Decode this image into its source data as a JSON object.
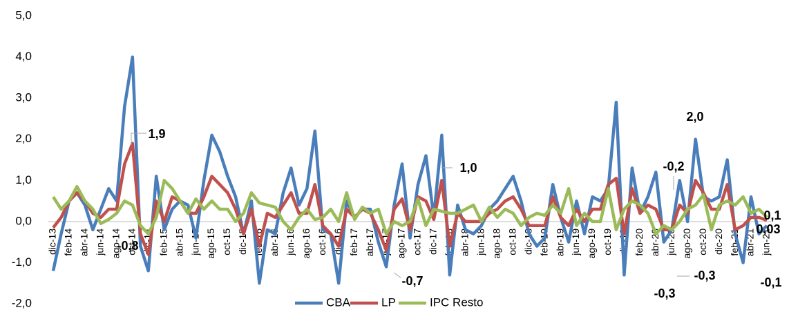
{
  "chart_data": {
    "type": "line",
    "categories": [
      "dic-13",
      null,
      "feb-14",
      null,
      "abr-14",
      null,
      "jun-14",
      null,
      "ago-14",
      null,
      "oct-14",
      null,
      "dic-14",
      null,
      "feb-15",
      null,
      "abr-15",
      null,
      "jun-15",
      null,
      "ago-15",
      null,
      "oct-15",
      null,
      "dic-15",
      null,
      "feb-16",
      null,
      "abr-16",
      null,
      "jun-16",
      null,
      "ago-16",
      null,
      "oct-16",
      null,
      "dic-16",
      null,
      "feb-17",
      null,
      "abr-17",
      null,
      "jun-17",
      null,
      "ago-17",
      null,
      "oct-17",
      null,
      "dic-17",
      null,
      "feb-18",
      null,
      "abr-18",
      null,
      "jun-18",
      null,
      "ago-18",
      null,
      "oct-18",
      null,
      "dic-18",
      null,
      "feb-19",
      null,
      "abr-19",
      null,
      "jun-19",
      null,
      "ago-19",
      null,
      "oct-19",
      null,
      "dic-19",
      null,
      "feb-20",
      null,
      "abr-20",
      null,
      "jun-20",
      null,
      "ago-20",
      null,
      "oct-20",
      null,
      "dic-20",
      null,
      "feb-21",
      null,
      "abr-21",
      null,
      "jun-21"
    ],
    "series": [
      {
        "name": "CBA",
        "color": "#4a7ebb",
        "values": [
          -1.2,
          -0.3,
          0.5,
          0.7,
          0.4,
          -0.2,
          0.3,
          0.8,
          0.5,
          2.8,
          4.0,
          -0.6,
          -1.2,
          1.1,
          -0.2,
          0.3,
          0.5,
          0.4,
          -0.4,
          1.0,
          2.1,
          1.7,
          1.1,
          0.6,
          -0.3,
          0.5,
          -1.5,
          -0.2,
          -0.3,
          0.7,
          1.3,
          0.4,
          0.8,
          2.2,
          -0.2,
          -0.3,
          -1.5,
          0.5,
          0.1,
          0.3,
          0.3,
          -0.5,
          -1.1,
          0.4,
          1.4,
          -0.4,
          0.9,
          1.6,
          0.1,
          2.1,
          -1.3,
          0.4,
          -0.2,
          -0.3,
          -0.1,
          0.3,
          0.5,
          0.8,
          1.1,
          0.5,
          -0.3,
          -0.6,
          -0.4,
          0.9,
          0.1,
          -0.5,
          0.5,
          -0.3,
          0.6,
          0.5,
          0.8,
          2.9,
          -1.3,
          1.3,
          0.2,
          0.6,
          1.2,
          -0.5,
          -0.2,
          1.0,
          0.0,
          2.0,
          0.6,
          0.5,
          0.6,
          1.5,
          -0.3,
          -1.0,
          0.6,
          -0.3,
          -0.1
        ]
      },
      {
        "name": "LP",
        "color": "#c0504d",
        "values": [
          -0.15,
          0.1,
          0.5,
          0.7,
          0.5,
          0.2,
          0.1,
          0.3,
          0.3,
          1.4,
          1.9,
          -0.3,
          -0.8,
          0.5,
          0.0,
          0.6,
          0.5,
          0.2,
          0.2,
          0.6,
          1.1,
          0.9,
          0.7,
          0.3,
          -0.3,
          0.3,
          -0.6,
          0.2,
          0.1,
          0.4,
          0.7,
          0.2,
          0.2,
          0.9,
          -0.1,
          -0.3,
          -0.6,
          0.3,
          0.1,
          0.3,
          0.2,
          -0.2,
          -0.7,
          0.3,
          0.55,
          -0.2,
          0.6,
          0.5,
          0.05,
          1.0,
          -0.6,
          0.2,
          0.0,
          0.0,
          0.0,
          0.2,
          0.3,
          0.5,
          0.6,
          0.3,
          -0.1,
          -0.1,
          -0.1,
          0.6,
          0.1,
          -0.1,
          0.3,
          0.0,
          0.3,
          0.3,
          0.9,
          1.05,
          -0.3,
          0.8,
          0.2,
          0.4,
          0.3,
          -0.2,
          -0.2,
          0.4,
          0.2,
          1.0,
          0.7,
          0.3,
          0.3,
          0.9,
          -0.2,
          -0.1,
          0.1,
          0.1,
          0.03
        ]
      },
      {
        "name": "IPC Resto",
        "color": "#9bbb59",
        "values": [
          0.6,
          0.3,
          0.5,
          0.85,
          0.5,
          0.3,
          -0.05,
          0.05,
          0.2,
          0.5,
          0.4,
          -0.1,
          -0.3,
          0.1,
          1.0,
          0.8,
          0.5,
          0.2,
          0.55,
          0.3,
          0.5,
          0.3,
          0.3,
          0.0,
          0.2,
          0.7,
          0.45,
          0.4,
          0.35,
          0.0,
          -0.2,
          0.1,
          0.3,
          0.05,
          0.1,
          0.3,
          0.0,
          0.7,
          0.05,
          0.35,
          0.2,
          0.3,
          -0.3,
          0.0,
          -0.1,
          0.0,
          0.55,
          -0.1,
          0.3,
          0.25,
          0.2,
          0.2,
          0.3,
          0.4,
          0.0,
          0.35,
          0.1,
          0.3,
          0.2,
          -0.1,
          0.1,
          0.2,
          0.15,
          0.4,
          0.2,
          0.8,
          -0.1,
          0.2,
          0.0,
          0.0,
          0.8,
          -0.2,
          0.3,
          0.5,
          0.4,
          0.2,
          -0.3,
          -0.1,
          -0.2,
          0.0,
          0.3,
          0.4,
          0.65,
          -0.2,
          0.4,
          0.5,
          0.4,
          0.6,
          0.2,
          0.3,
          0.1
        ]
      }
    ],
    "ylim": [
      -2,
      5
    ],
    "yticks": [
      {
        "value": -2,
        "label": "-2,0"
      },
      {
        "value": -1,
        "label": "-1,0"
      },
      {
        "value": 0,
        "label": "0,0"
      },
      {
        "value": 1,
        "label": "1,0"
      },
      {
        "value": 2,
        "label": "2,0"
      },
      {
        "value": 3,
        "label": "3,0"
      },
      {
        "value": 4,
        "label": "4,0"
      },
      {
        "value": 5,
        "label": "5,0"
      }
    ],
    "annotations": [
      "1,9",
      "-0,8",
      "-0,7",
      "1,0",
      "-0,2",
      "2,0",
      "-0,3",
      "-0,3",
      "0,1",
      "0,03",
      "-0,1"
    ],
    "legend": "bottom"
  }
}
